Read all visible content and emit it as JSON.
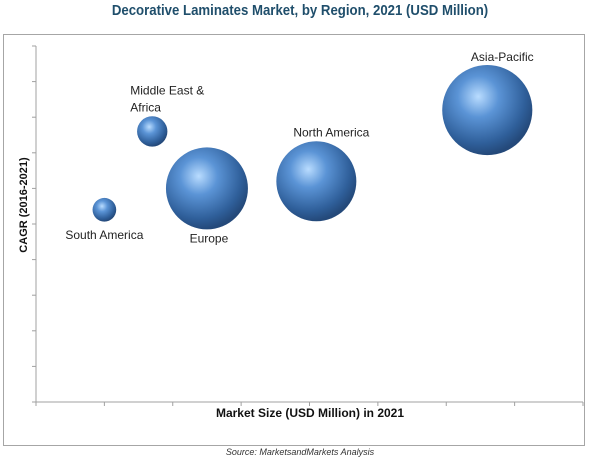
{
  "chart_data": {
    "type": "bubble",
    "title": "Decorative Laminates Market, by Region, 2021 (USD Million)",
    "xlabel": "Market Size (USD Million) in 2021",
    "ylabel": "CAGR (2016-2021)",
    "x_ticks": 8,
    "y_ticks": 10,
    "tick_labels_shown": false,
    "grid": false,
    "points": [
      {
        "label": "South America",
        "x": 1.0,
        "y": 5.4,
        "size": 1.4
      },
      {
        "label": "Middle East & Africa",
        "label_lines": [
          "Middle East &",
          "Africa"
        ],
        "x": 1.7,
        "y": 7.6,
        "size": 2.3
      },
      {
        "label": "Europe",
        "x": 2.5,
        "y": 6.0,
        "size": 16.8
      },
      {
        "label": "North America",
        "x": 4.1,
        "y": 6.2,
        "size": 16.0
      },
      {
        "label": "Asia-Pacific",
        "x": 6.6,
        "y": 8.2,
        "size": 20.3
      }
    ],
    "bubble_color": "#4f81bd",
    "source": "Source: MarketsandMarkets Analysis"
  }
}
